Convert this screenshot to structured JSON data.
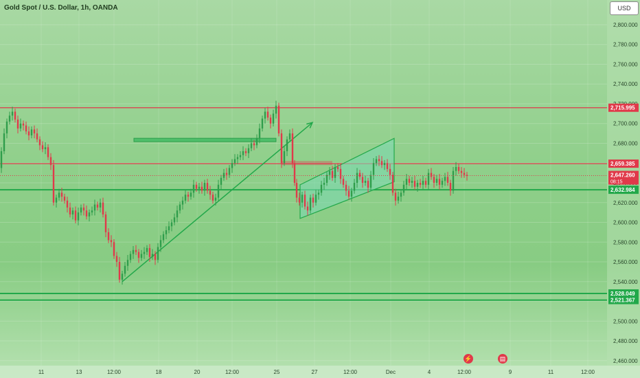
{
  "title": "Gold Spot / U.S. Dollar, 1h, OANDA",
  "currency_button": "USD",
  "colors": {
    "resistance": "#e0394a",
    "support": "#22a84a",
    "candle_up": "#2f9d4b",
    "candle_down": "#e0394a",
    "channel_fill": "#7dd8b0"
  },
  "icons": [
    "lightning-icon",
    "calendar-flag-icon"
  ],
  "chart_data": {
    "type": "candlestick",
    "title": "Gold Spot / U.S. Dollar, 1h, OANDA",
    "xlabel": "",
    "ylabel": "",
    "ylim": [
      2455,
      2825
    ],
    "y_ticks": [
      2800,
      2780,
      2760,
      2740,
      2720,
      2700,
      2680,
      2660,
      2640,
      2620,
      2600,
      2580,
      2560,
      2540,
      2520,
      2500,
      2480,
      2460
    ],
    "y_tick_labels": [
      "2,800.000",
      "2,780.000",
      "2,760.000",
      "2,740.000",
      "2,720.000",
      "2,700.000",
      "2,680.000",
      "2,660.000",
      "2,640.000",
      "2,620.000",
      "2,600.000",
      "2,580.000",
      "2,560.000",
      "2,540.000",
      "2,520.000",
      "2,500.000",
      "2,480.000",
      "2,460.000"
    ],
    "x_tick_labels": [
      "11",
      "13",
      "12:00",
      "18",
      "20",
      "12:00",
      "25",
      "27",
      "12:00",
      "Dec",
      "4",
      "12:00",
      "9",
      "11",
      "12:00"
    ],
    "horizontal_levels": [
      {
        "value": 2715.995,
        "label": "2,715.995",
        "color": "resistance"
      },
      {
        "value": 2659.385,
        "label": "2,659.385",
        "color": "resistance"
      },
      {
        "value": 2632.984,
        "label": "2,632.984",
        "color": "support"
      },
      {
        "value": 2528.049,
        "label": "2,528.049",
        "color": "support"
      },
      {
        "value": 2521.367,
        "label": "2,521.367",
        "color": "support"
      }
    ],
    "current_price": {
      "value": 2647.26,
      "label": "2,647.260",
      "countdown": "08:15"
    },
    "price_path": [
      [
        0,
        2655
      ],
      [
        4,
        2672
      ],
      [
        8,
        2690
      ],
      [
        12,
        2702
      ],
      [
        16,
        2708
      ],
      [
        20,
        2712
      ],
      [
        24,
        2704
      ],
      [
        28,
        2695
      ],
      [
        32,
        2700
      ],
      [
        36,
        2698
      ],
      [
        40,
        2692
      ],
      [
        44,
        2688
      ],
      [
        48,
        2694
      ],
      [
        52,
        2690
      ],
      [
        56,
        2684
      ],
      [
        60,
        2678
      ],
      [
        64,
        2674
      ],
      [
        68,
        2676
      ],
      [
        72,
        2666
      ],
      [
        76,
        2658
      ],
      [
        80,
        2620
      ],
      [
        84,
        2625
      ],
      [
        88,
        2630
      ],
      [
        92,
        2626
      ],
      [
        96,
        2622
      ],
      [
        100,
        2615
      ],
      [
        104,
        2608
      ],
      [
        108,
        2612
      ],
      [
        112,
        2602
      ],
      [
        116,
        2610
      ],
      [
        120,
        2615
      ],
      [
        124,
        2612
      ],
      [
        128,
        2606
      ],
      [
        132,
        2610
      ],
      [
        136,
        2612
      ],
      [
        140,
        2618
      ],
      [
        144,
        2615
      ],
      [
        148,
        2620
      ],
      [
        152,
        2608
      ],
      [
        156,
        2590
      ],
      [
        160,
        2582
      ],
      [
        164,
        2580
      ],
      [
        168,
        2566
      ],
      [
        172,
        2560
      ],
      [
        176,
        2542
      ],
      [
        180,
        2548
      ],
      [
        184,
        2556
      ],
      [
        188,
        2562
      ],
      [
        192,
        2568
      ],
      [
        196,
        2572
      ],
      [
        200,
        2570
      ],
      [
        204,
        2564
      ],
      [
        208,
        2568
      ],
      [
        212,
        2570
      ],
      [
        216,
        2574
      ],
      [
        220,
        2565
      ],
      [
        224,
        2568
      ],
      [
        228,
        2562
      ],
      [
        232,
        2575
      ],
      [
        236,
        2582
      ],
      [
        240,
        2588
      ],
      [
        244,
        2592
      ],
      [
        248,
        2596
      ],
      [
        252,
        2600
      ],
      [
        256,
        2605
      ],
      [
        260,
        2612
      ],
      [
        264,
        2618
      ],
      [
        268,
        2622
      ],
      [
        272,
        2628
      ],
      [
        276,
        2626
      ],
      [
        280,
        2630
      ],
      [
        284,
        2638
      ],
      [
        288,
        2634
      ],
      [
        292,
        2636
      ],
      [
        296,
        2632
      ],
      [
        300,
        2640
      ],
      [
        304,
        2632
      ],
      [
        308,
        2628
      ],
      [
        312,
        2622
      ],
      [
        316,
        2625
      ],
      [
        320,
        2638
      ],
      [
        324,
        2645
      ],
      [
        328,
        2650
      ],
      [
        332,
        2648
      ],
      [
        336,
        2655
      ],
      [
        340,
        2660
      ],
      [
        344,
        2664
      ],
      [
        348,
        2666
      ],
      [
        352,
        2668
      ],
      [
        356,
        2672
      ],
      [
        360,
        2670
      ],
      [
        364,
        2675
      ],
      [
        368,
        2680
      ],
      [
        372,
        2678
      ],
      [
        376,
        2685
      ],
      [
        380,
        2695
      ],
      [
        384,
        2705
      ],
      [
        388,
        2712
      ],
      [
        392,
        2706
      ],
      [
        396,
        2700
      ],
      [
        400,
        2710
      ],
      [
        404,
        2718
      ],
      [
        408,
        2690
      ],
      [
        412,
        2660
      ],
      [
        416,
        2672
      ],
      [
        420,
        2684
      ],
      [
        424,
        2690
      ],
      [
        428,
        2660
      ],
      [
        430,
        2640
      ],
      [
        434,
        2625
      ],
      [
        438,
        2620
      ],
      [
        442,
        2628
      ],
      [
        446,
        2616
      ],
      [
        450,
        2612
      ],
      [
        454,
        2625
      ],
      [
        458,
        2620
      ],
      [
        462,
        2628
      ],
      [
        466,
        2630
      ],
      [
        470,
        2638
      ],
      [
        474,
        2640
      ],
      [
        478,
        2648
      ],
      [
        482,
        2652
      ],
      [
        486,
        2645
      ],
      [
        490,
        2656
      ],
      [
        494,
        2654
      ],
      [
        498,
        2644
      ],
      [
        502,
        2638
      ],
      [
        506,
        2632
      ],
      [
        510,
        2626
      ],
      [
        514,
        2632
      ],
      [
        518,
        2640
      ],
      [
        522,
        2650
      ],
      [
        526,
        2646
      ],
      [
        530,
        2640
      ],
      [
        534,
        2642
      ],
      [
        538,
        2635
      ],
      [
        542,
        2648
      ],
      [
        546,
        2660
      ],
      [
        550,
        2664
      ],
      [
        554,
        2662
      ],
      [
        558,
        2658
      ],
      [
        562,
        2660
      ],
      [
        566,
        2654
      ],
      [
        570,
        2648
      ],
      [
        574,
        2630
      ],
      [
        578,
        2622
      ],
      [
        582,
        2626
      ],
      [
        586,
        2630
      ],
      [
        590,
        2638
      ],
      [
        594,
        2644
      ],
      [
        598,
        2640
      ],
      [
        602,
        2642
      ],
      [
        606,
        2636
      ],
      [
        610,
        2640
      ],
      [
        614,
        2638
      ],
      [
        618,
        2642
      ],
      [
        622,
        2638
      ],
      [
        626,
        2650
      ],
      [
        630,
        2646
      ],
      [
        634,
        2640
      ],
      [
        638,
        2644
      ],
      [
        642,
        2638
      ],
      [
        646,
        2642
      ],
      [
        650,
        2646
      ],
      [
        654,
        2640
      ],
      [
        658,
        2632
      ],
      [
        662,
        2652
      ],
      [
        666,
        2656
      ],
      [
        670,
        2652
      ],
      [
        674,
        2650
      ],
      [
        678,
        2648
      ],
      [
        682,
        2647.26
      ]
    ],
    "price_path_x_range": [
      0,
      682
    ],
    "annotations": [
      {
        "type": "trendline",
        "from": [
          178,
          2540
        ],
        "to": [
          455,
          2701
        ],
        "arrow": true,
        "color": "support"
      },
      {
        "type": "horizontal_segment",
        "from": [
          195,
          2683
        ],
        "to": [
          402,
          2683
        ],
        "color": "support"
      },
      {
        "type": "channel",
        "lower": [
          [
            437,
            2604
          ],
          [
            574,
            2641
          ]
        ],
        "upper": [
          [
            437,
            2638
          ],
          [
            574,
            2685
          ]
        ],
        "color": "channel_fill"
      },
      {
        "type": "shaded_zone",
        "from": [
          410,
          2660
        ],
        "to": [
          484,
          2658
        ],
        "color": "resistance"
      }
    ]
  }
}
